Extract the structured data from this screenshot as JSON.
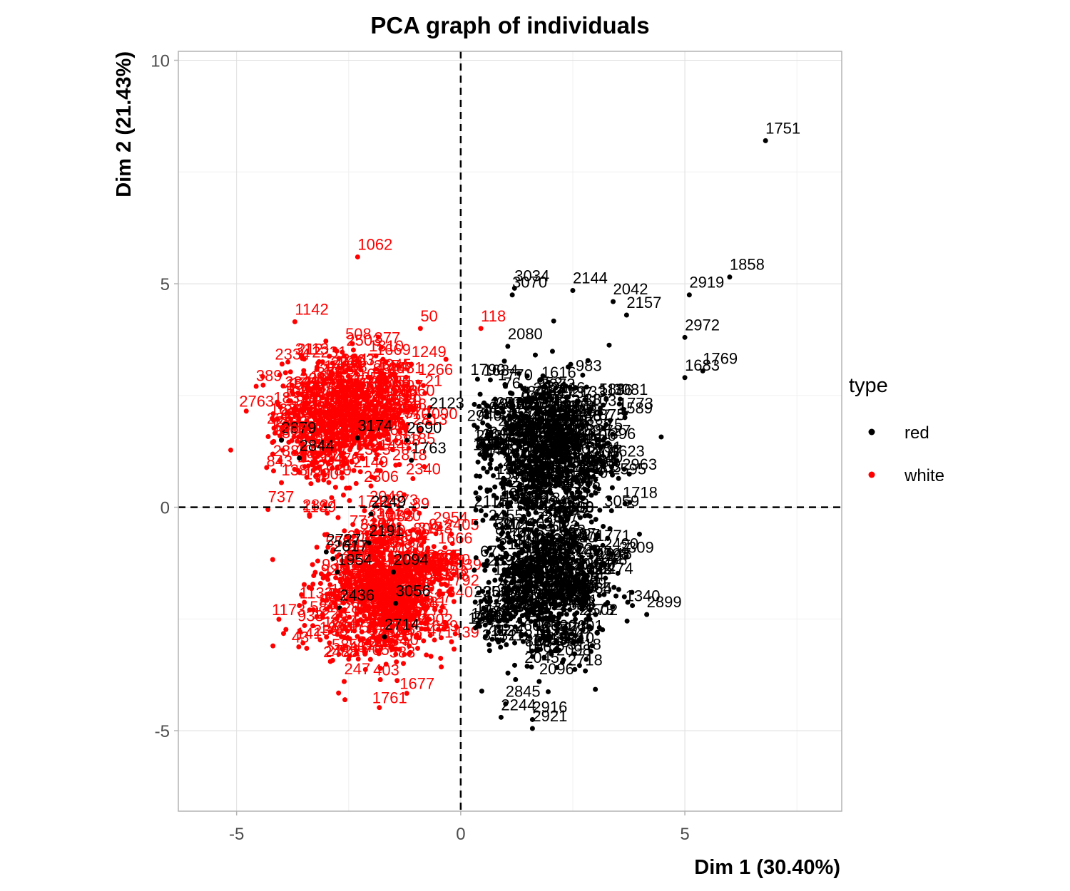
{
  "chart_data": {
    "type": "scatter",
    "title": "PCA graph of individuals",
    "xlabel": "Dim 1 (30.40%)",
    "ylabel": "Dim 2 (21.43%)",
    "xlim": [
      -6.3,
      8.5
    ],
    "ylim": [
      -6.8,
      10.2
    ],
    "x_ticks": [
      -5,
      0,
      5
    ],
    "y_ticks": [
      -5,
      0,
      5,
      10
    ],
    "grid": true,
    "reference_lines": {
      "x": 0,
      "y": 0,
      "style": "dashed"
    },
    "legend": {
      "title": "type",
      "placement": "right",
      "entries": [
        {
          "label": "red",
          "color": "#000000"
        },
        {
          "label": "white",
          "color": "#ff0000"
        }
      ]
    },
    "series": [
      {
        "name": "red",
        "color": "#000000",
        "labeled_points": [
          {
            "id": "1751",
            "x": 6.8,
            "y": 8.2
          },
          {
            "id": "1858",
            "x": 6.0,
            "y": 5.15
          },
          {
            "id": "3034",
            "x": 1.2,
            "y": 4.9
          },
          {
            "id": "3070",
            "x": 1.15,
            "y": 4.75
          },
          {
            "id": "2144",
            "x": 2.5,
            "y": 4.85
          },
          {
            "id": "2042",
            "x": 3.4,
            "y": 4.6
          },
          {
            "id": "2919",
            "x": 5.1,
            "y": 4.75
          },
          {
            "id": "2157",
            "x": 3.7,
            "y": 4.3
          },
          {
            "id": "2080",
            "x": 1.05,
            "y": 3.6
          },
          {
            "id": "1769",
            "x": 5.4,
            "y": 3.05
          },
          {
            "id": "1683",
            "x": 5.0,
            "y": 2.9
          },
          {
            "id": "2972",
            "x": 5.0,
            "y": 3.8
          },
          {
            "id": "2123",
            "x": -0.7,
            "y": 2.05
          },
          {
            "id": "3174",
            "x": -2.3,
            "y": 1.55
          },
          {
            "id": "2844",
            "x": -3.6,
            "y": 1.1
          },
          {
            "id": "2879",
            "x": -4.0,
            "y": 1.5
          },
          {
            "id": "2690",
            "x": -1.2,
            "y": 1.5
          },
          {
            "id": "1763",
            "x": -1.1,
            "y": 1.05
          },
          {
            "id": "2249",
            "x": -2.0,
            "y": -0.15
          },
          {
            "id": "2191",
            "x": -2.05,
            "y": -0.8
          },
          {
            "id": "2727",
            "x": -3.0,
            "y": -1.0
          },
          {
            "id": "2617",
            "x": -2.85,
            "y": -1.15
          },
          {
            "id": "1954",
            "x": -2.75,
            "y": -1.45
          },
          {
            "id": "2094",
            "x": -1.5,
            "y": -1.45
          },
          {
            "id": "3056",
            "x": -1.45,
            "y": -2.15
          },
          {
            "id": "2436",
            "x": -2.7,
            "y": -2.25
          },
          {
            "id": "2714",
            "x": -1.7,
            "y": -2.9
          },
          {
            "id": "2899",
            "x": 4.15,
            "y": -2.4
          },
          {
            "id": "2010",
            "x": 2.2,
            "y": -3.2
          },
          {
            "id": "2096",
            "x": 1.75,
            "y": -3.9
          },
          {
            "id": "2845",
            "x": 1.0,
            "y": -4.4
          },
          {
            "id": "2916",
            "x": 1.6,
            "y": -4.75
          },
          {
            "id": "2921",
            "x": 1.6,
            "y": -4.95
          },
          {
            "id": "2244",
            "x": 0.9,
            "y": -4.7
          }
        ]
      },
      {
        "name": "white",
        "color": "#ff0000",
        "labeled_points": [
          {
            "id": "1062",
            "x": -2.3,
            "y": 5.6
          },
          {
            "id": "118",
            "x": 0.45,
            "y": 4.0
          },
          {
            "id": "50",
            "x": -0.9,
            "y": 4.0
          },
          {
            "id": "1142",
            "x": -3.7,
            "y": 4.15
          },
          {
            "id": "1266",
            "x": -0.95,
            "y": 2.8
          },
          {
            "id": "1249",
            "x": -1.1,
            "y": 3.2
          },
          {
            "id": "21",
            "x": -0.8,
            "y": 2.55
          },
          {
            "id": "1305",
            "x": -4.2,
            "y": 1.45
          },
          {
            "id": "1387",
            "x": -4.0,
            "y": 0.55
          },
          {
            "id": "737",
            "x": -4.3,
            "y": -0.05
          },
          {
            "id": "1228",
            "x": -3.3,
            "y": -2.65
          },
          {
            "id": "247",
            "x": -2.6,
            "y": -3.9
          },
          {
            "id": "1133",
            "x": -3.6,
            "y": -2.2
          },
          {
            "id": "437",
            "x": -2.5,
            "y": -3.4
          }
        ]
      }
    ]
  }
}
